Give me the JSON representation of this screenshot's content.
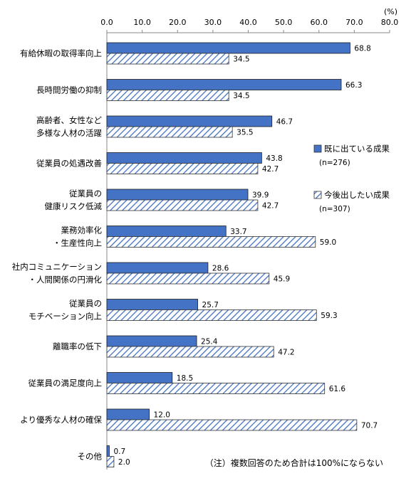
{
  "chart_data": {
    "type": "bar",
    "orientation": "horizontal",
    "unit_label": "(%)",
    "xlim": [
      0,
      80
    ],
    "xticks": [
      "0.0",
      "10.0",
      "20.0",
      "30.0",
      "40.0",
      "50.0",
      "60.0",
      "70.0",
      "80.0"
    ],
    "categories": [
      [
        "有給休暇の取得率向上"
      ],
      [
        "長時間労働の抑制"
      ],
      [
        "高齢者、女性など",
        "多様な人材の活躍"
      ],
      [
        "従業員の処遇改善"
      ],
      [
        "従業員の",
        "健康リスク低減"
      ],
      [
        "業務効率化",
        "・生産性向上"
      ],
      [
        "社内コミュニケーション",
        "・人間関係の円滑化"
      ],
      [
        "従業員の",
        "モチベーション向上"
      ],
      [
        "離職率の低下"
      ],
      [
        "従業員の満足度向上"
      ],
      [
        "より優秀な人材の確保"
      ],
      [
        "その他"
      ]
    ],
    "series": [
      {
        "name": "既に出ている成果",
        "n_label": "(n=276)",
        "color": "#4472C4",
        "style": "solid",
        "values": [
          68.8,
          66.3,
          46.7,
          43.8,
          39.9,
          33.7,
          28.6,
          25.7,
          25.4,
          18.5,
          12.0,
          0.7
        ]
      },
      {
        "name": "今後出したい成果",
        "n_label": "(n=307)",
        "color": "#4472C4",
        "style": "hatched",
        "values": [
          34.5,
          34.5,
          35.5,
          42.7,
          42.7,
          59.0,
          45.9,
          59.3,
          47.2,
          61.6,
          70.7,
          2.0
        ]
      }
    ],
    "legend_position": "right",
    "note": "（注）複数回答のため合計は100%にならない"
  }
}
